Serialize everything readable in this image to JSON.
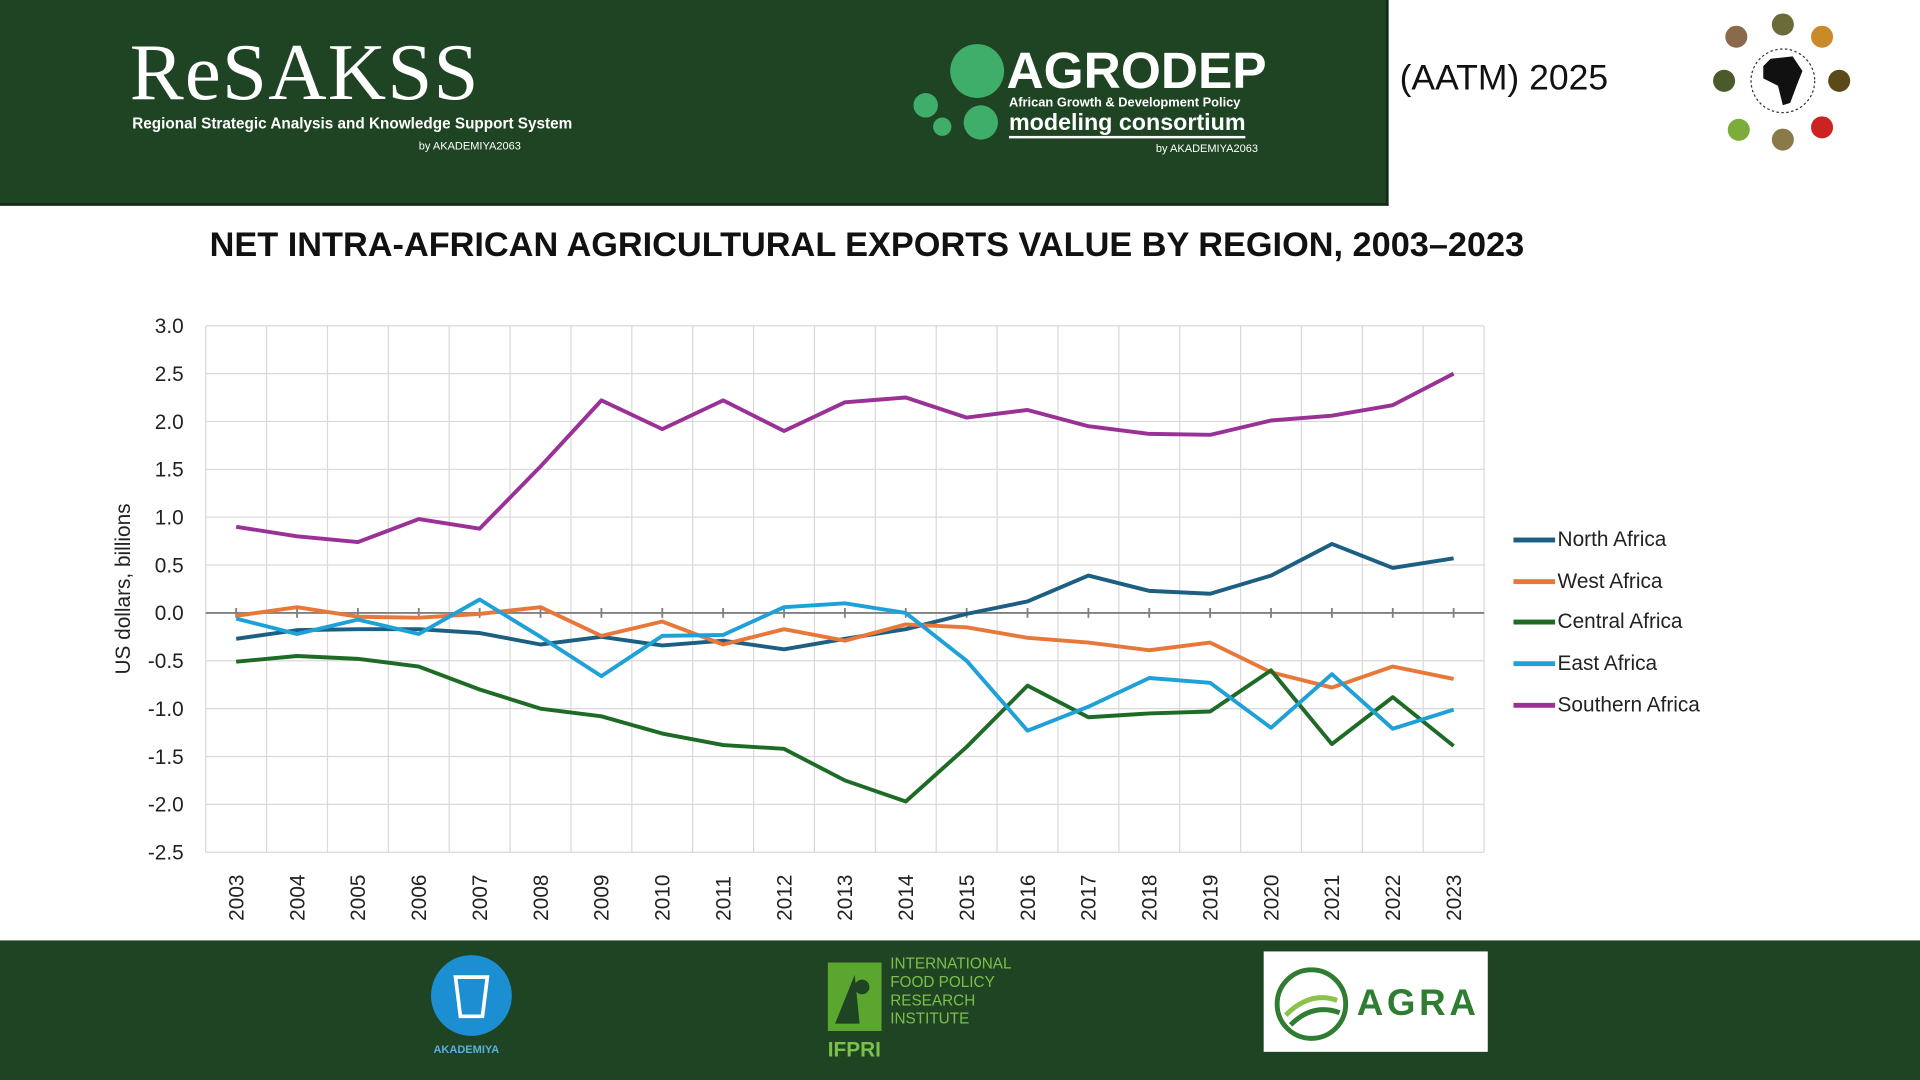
{
  "header": {
    "resakss_logo": "ReSAKSS",
    "resakss_subtitle": "Regional Strategic Analysis and Knowledge Support System",
    "resakss_by": "by AKADEMIYA2063",
    "agrodep_logo": "AGRODEP",
    "agrodep_subtitle1": "African Growth & Development Policy",
    "agrodep_subtitle2": "modeling consortium",
    "agrodep_by": "by AKADEMIYA2063",
    "event": "(AATM) 2025"
  },
  "footer": {
    "akademiya_logo": "AKADEMIYA",
    "ifpri_logo": "INTERNATIONAL FOOD POLICY RESEARCH INSTITUTE",
    "ifpri_short": "IFPRI",
    "agra_logo": "AGRA"
  },
  "chart_data": {
    "type": "line",
    "title": "NET INTRA-AFRICAN AGRICULTURAL EXPORTS VALUE BY REGION, 2003–2023",
    "xlabel": "",
    "ylabel": "US dollars, billions",
    "ylim": [
      -2.5,
      3.0
    ],
    "yticks": [
      "3.0",
      "2.5",
      "2.0",
      "1.5",
      "1.0",
      "0.5",
      "0.0",
      "-0.5",
      "-1.0",
      "-1.5",
      "-2.0",
      "-2.5"
    ],
    "grid": true,
    "legend": "right",
    "x": [
      "2003",
      "2004",
      "2005",
      "2006",
      "2007",
      "2008",
      "2009",
      "2010",
      "2011",
      "2012",
      "2013",
      "2014",
      "2015",
      "2016",
      "2017",
      "2018",
      "2019",
      "2020",
      "2021",
      "2022",
      "2023"
    ],
    "series": [
      {
        "name": "North Africa",
        "color": "#1c5f82",
        "values": [
          -0.27,
          -0.18,
          -0.17,
          -0.17,
          -0.21,
          -0.33,
          -0.25,
          -0.34,
          -0.29,
          -0.38,
          -0.27,
          -0.17,
          -0.01,
          0.12,
          0.39,
          0.23,
          0.2,
          0.39,
          0.72,
          0.47,
          0.57
        ]
      },
      {
        "name": "West Africa",
        "color": "#e8773a",
        "values": [
          -0.03,
          0.06,
          -0.04,
          -0.05,
          -0.01,
          0.06,
          -0.24,
          -0.09,
          -0.33,
          -0.17,
          -0.29,
          -0.12,
          -0.15,
          -0.26,
          -0.31,
          -0.39,
          -0.31,
          -0.62,
          -0.78,
          -0.56,
          -0.69
        ]
      },
      {
        "name": "Central Africa",
        "color": "#1e6b26",
        "values": [
          -0.51,
          -0.45,
          -0.48,
          -0.56,
          -0.8,
          -1.0,
          -1.08,
          -1.26,
          -1.38,
          -1.42,
          -1.75,
          -1.97,
          -1.4,
          -0.76,
          -1.09,
          -1.05,
          -1.03,
          -0.6,
          -1.37,
          -0.88,
          -1.39
        ]
      },
      {
        "name": "East Africa",
        "color": "#1fa1d8",
        "values": [
          -0.06,
          -0.22,
          -0.07,
          -0.22,
          0.14,
          -0.25,
          -0.66,
          -0.24,
          -0.23,
          0.06,
          0.1,
          0.0,
          -0.5,
          -1.23,
          -0.98,
          -0.68,
          -0.73,
          -1.2,
          -0.64,
          -1.21,
          -1.01
        ]
      },
      {
        "name": "Southern Africa",
        "color": "#9a3196",
        "values": [
          0.9,
          0.8,
          0.74,
          0.98,
          0.88,
          1.53,
          2.22,
          1.92,
          2.22,
          1.9,
          2.2,
          2.25,
          2.04,
          2.12,
          1.95,
          1.87,
          1.86,
          2.01,
          2.06,
          2.17,
          2.5
        ]
      }
    ]
  }
}
